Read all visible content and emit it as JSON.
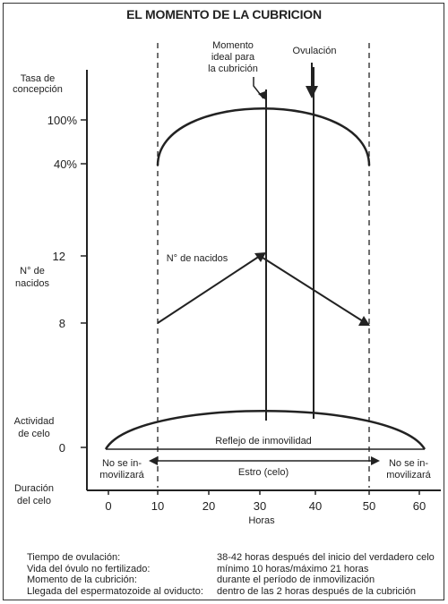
{
  "title": "EL MOMENTO DE LA CUBRICION",
  "labels": {
    "momento_line1": "Momento",
    "momento_line2": "ideal para",
    "momento_line3": "la cubrición",
    "ovulacion": "Ovulación",
    "tasa_line1": "Tasa de",
    "tasa_line2": "concepción",
    "nacidos_axis_line1": "N° de",
    "nacidos_axis_line2": "nacidos",
    "nacidos_curve": "N° de nacidos",
    "actividad_line1": "Actividad",
    "actividad_line2": "de celo",
    "duracion_line1": "Duración",
    "duracion_line2": "del celo",
    "reflejo": "Reflejo de inmovilidad",
    "estro": "Estro (celo)",
    "no_left_line1": "No se in-",
    "no_left_line2": "movilizará",
    "no_right_line1": "No se in-",
    "no_right_line2": "movilizará",
    "xlabel": "Horas"
  },
  "chart_data": {
    "type": "line",
    "xlabel": "Horas",
    "x_ticks": [
      0,
      10,
      20,
      30,
      40,
      50,
      60
    ],
    "y_ticks": [
      "100%",
      "40%",
      "12",
      "8",
      "0"
    ],
    "series": [
      {
        "name": "N° de nacidos",
        "x": [
          10,
          30,
          49
        ],
        "y": [
          8,
          12,
          8
        ]
      }
    ],
    "markers": {
      "momento_ideal": 30,
      "ovulacion": 39,
      "estro_start": 10,
      "estro_end": 49
    }
  },
  "notes": [
    {
      "key": "Tiempo de ovulación:",
      "value": "38-42 horas después del inicio del verdadero celo"
    },
    {
      "key": "Vida del óvulo no fertilizado:",
      "value": "mínimo 10 horas/máximo 21 horas"
    },
    {
      "key": "Momento de la cubrición:",
      "value": "durante el período de inmovilización"
    },
    {
      "key": "Llegada del espermatozoide al oviducto:",
      "value": "dentro de las 2 horas después de la cubrición"
    }
  ]
}
